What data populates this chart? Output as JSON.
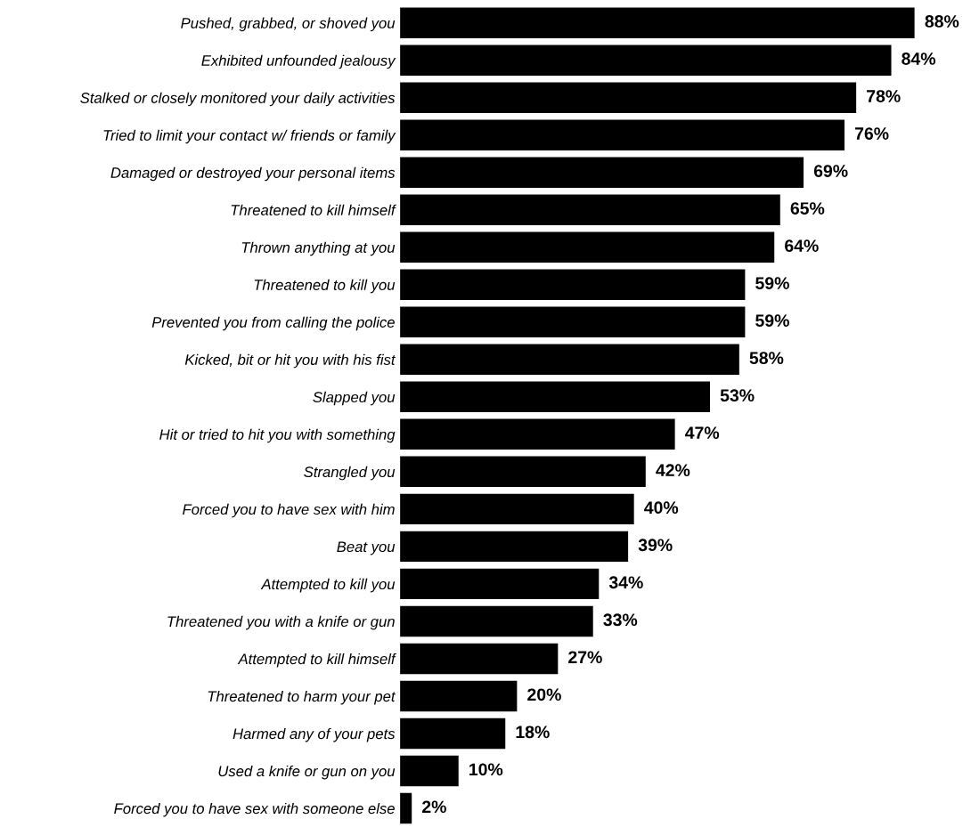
{
  "chart_data": {
    "type": "bar",
    "orientation": "horizontal",
    "categories": [
      "Pushed, grabbed, or shoved you",
      "Exhibited unfounded jealousy",
      "Stalked or closely monitored your daily activities",
      "Tried to limit your contact w/ friends or family",
      "Damaged or destroyed your personal items",
      "Threatened to kill himself",
      "Thrown anything at you",
      "Threatened to kill you",
      "Prevented you from calling the police",
      "Kicked, bit or hit you with his fist",
      "Slapped you",
      "Hit or tried to hit you with something",
      "Strangled you",
      "Forced you to have sex with him",
      "Beat you",
      "Attempted to kill you",
      "Threatened you with a knife or gun",
      "Attempted to kill himself",
      "Threatened to harm your pet",
      "Harmed any of your pets",
      "Used a knife or gun on you",
      "Forced you to have sex with someone else"
    ],
    "values": [
      88,
      84,
      78,
      76,
      69,
      65,
      64,
      59,
      59,
      58,
      53,
      47,
      42,
      40,
      39,
      34,
      33,
      27,
      20,
      18,
      10,
      2
    ],
    "value_labels": [
      "88%",
      "84%",
      "78%",
      "76%",
      "69%",
      "65%",
      "64%",
      "59%",
      "59%",
      "58%",
      "53%",
      "47%",
      "42%",
      "40%",
      "39%",
      "34%",
      "33%",
      "27%",
      "20%",
      "18%",
      "10%",
      "2%"
    ],
    "color": "#000000",
    "tick_labels": "y",
    "grid": false,
    "legend": false
  }
}
